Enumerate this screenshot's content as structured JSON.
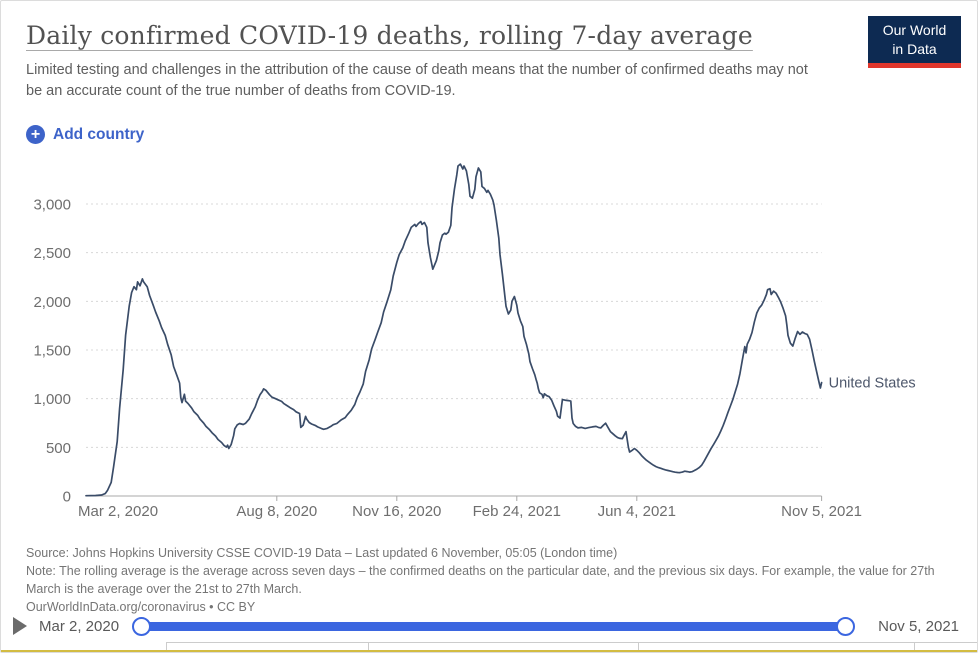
{
  "header": {
    "title": "Daily confirmed COVID-19 deaths, rolling 7-day average",
    "subtitle": "Limited testing and challenges in the attribution of the cause of death means that the number of confirmed deaths may not be an accurate count of the true number of deaths from COVID-19.",
    "logo": {
      "line1": "Our World",
      "line2": "in Data"
    }
  },
  "controls": {
    "add_country_label": "Add country",
    "plus_icon": "+"
  },
  "chart_data": {
    "type": "line",
    "title": "Daily confirmed COVID-19 deaths, rolling 7-day average",
    "xlabel": "",
    "ylabel": "",
    "x_tick_labels": [
      "Mar 2, 2020",
      "Aug 8, 2020",
      "Nov 16, 2020",
      "Feb 24, 2021",
      "Jun 4, 2021",
      "Nov 5, 2021"
    ],
    "x_tick_days": [
      0,
      159,
      259,
      359,
      459,
      613
    ],
    "y_ticks": [
      0,
      500,
      1000,
      1500,
      2000,
      2500,
      3000
    ],
    "y_tick_labels": [
      "0",
      "500",
      "1,000",
      "1,500",
      "2,000",
      "2,500",
      "3,000"
    ],
    "xlim_days": [
      0,
      613
    ],
    "ylim": [
      0,
      3500
    ],
    "grid": "dashed-horizontal",
    "legend_position": "end-of-line-label",
    "series": [
      {
        "name": "United States",
        "color": "#3a4c68",
        "points": [
          [
            0,
            3
          ],
          [
            8,
            5
          ],
          [
            13,
            10
          ],
          [
            16,
            25
          ],
          [
            18,
            60
          ],
          [
            21,
            140
          ],
          [
            23,
            300
          ],
          [
            26,
            560
          ],
          [
            28,
            900
          ],
          [
            31,
            1300
          ],
          [
            33,
            1650
          ],
          [
            36,
            1950
          ],
          [
            38,
            2090
          ],
          [
            40,
            2150
          ],
          [
            42,
            2120
          ],
          [
            43,
            2200
          ],
          [
            45,
            2160
          ],
          [
            47,
            2230
          ],
          [
            48,
            2200
          ],
          [
            51,
            2150
          ],
          [
            53,
            2060
          ],
          [
            56,
            1960
          ],
          [
            58,
            1890
          ],
          [
            61,
            1800
          ],
          [
            63,
            1730
          ],
          [
            66,
            1650
          ],
          [
            68,
            1560
          ],
          [
            71,
            1450
          ],
          [
            73,
            1330
          ],
          [
            76,
            1230
          ],
          [
            78,
            1160
          ],
          [
            79,
            1010
          ],
          [
            80,
            960
          ],
          [
            82,
            1045
          ],
          [
            83,
            975
          ],
          [
            85,
            950
          ],
          [
            88,
            905
          ],
          [
            90,
            865
          ],
          [
            93,
            830
          ],
          [
            95,
            790
          ],
          [
            98,
            750
          ],
          [
            100,
            715
          ],
          [
            103,
            680
          ],
          [
            105,
            650
          ],
          [
            108,
            615
          ],
          [
            110,
            580
          ],
          [
            113,
            550
          ],
          [
            115,
            520
          ],
          [
            117,
            502
          ],
          [
            118,
            522
          ],
          [
            119,
            488
          ],
          [
            121,
            530
          ],
          [
            123,
            620
          ],
          [
            124,
            690
          ],
          [
            126,
            730
          ],
          [
            128,
            745
          ],
          [
            131,
            735
          ],
          [
            133,
            748
          ],
          [
            136,
            790
          ],
          [
            138,
            845
          ],
          [
            141,
            915
          ],
          [
            143,
            985
          ],
          [
            145,
            1040
          ],
          [
            147,
            1075
          ],
          [
            148,
            1100
          ],
          [
            150,
            1085
          ],
          [
            153,
            1040
          ],
          [
            155,
            1015
          ],
          [
            158,
            1000
          ],
          [
            160,
            988
          ],
          [
            163,
            972
          ],
          [
            165,
            948
          ],
          [
            168,
            925
          ],
          [
            170,
            908
          ],
          [
            173,
            888
          ],
          [
            175,
            865
          ],
          [
            178,
            848
          ],
          [
            179,
            705
          ],
          [
            181,
            728
          ],
          [
            183,
            818
          ],
          [
            184,
            788
          ],
          [
            186,
            755
          ],
          [
            188,
            740
          ],
          [
            191,
            725
          ],
          [
            193,
            710
          ],
          [
            196,
            695
          ],
          [
            198,
            685
          ],
          [
            201,
            695
          ],
          [
            204,
            715
          ],
          [
            206,
            733
          ],
          [
            209,
            745
          ],
          [
            211,
            765
          ],
          [
            213,
            785
          ],
          [
            216,
            805
          ],
          [
            218,
            838
          ],
          [
            221,
            880
          ],
          [
            224,
            940
          ],
          [
            226,
            1010
          ],
          [
            228,
            1060
          ],
          [
            231,
            1150
          ],
          [
            233,
            1280
          ],
          [
            236,
            1400
          ],
          [
            238,
            1510
          ],
          [
            241,
            1610
          ],
          [
            243,
            1680
          ],
          [
            246,
            1780
          ],
          [
            248,
            1890
          ],
          [
            251,
            2000
          ],
          [
            254,
            2120
          ],
          [
            256,
            2260
          ],
          [
            259,
            2400
          ],
          [
            261,
            2480
          ],
          [
            264,
            2550
          ],
          [
            266,
            2620
          ],
          [
            269,
            2700
          ],
          [
            271,
            2760
          ],
          [
            274,
            2790
          ],
          [
            275,
            2770
          ],
          [
            277,
            2800
          ],
          [
            279,
            2820
          ],
          [
            280,
            2790
          ],
          [
            282,
            2810
          ],
          [
            284,
            2760
          ],
          [
            285,
            2600
          ],
          [
            287,
            2450
          ],
          [
            289,
            2330
          ],
          [
            290,
            2360
          ],
          [
            292,
            2420
          ],
          [
            294,
            2520
          ],
          [
            295,
            2600
          ],
          [
            297,
            2680
          ],
          [
            299,
            2700
          ],
          [
            300,
            2690
          ],
          [
            302,
            2710
          ],
          [
            304,
            2780
          ],
          [
            305,
            2960
          ],
          [
            307,
            3150
          ],
          [
            309,
            3300
          ],
          [
            310,
            3390
          ],
          [
            312,
            3410
          ],
          [
            314,
            3360
          ],
          [
            315,
            3390
          ],
          [
            317,
            3340
          ],
          [
            319,
            3200
          ],
          [
            320,
            3080
          ],
          [
            322,
            3060
          ],
          [
            324,
            3150
          ],
          [
            325,
            3280
          ],
          [
            327,
            3370
          ],
          [
            329,
            3330
          ],
          [
            330,
            3180
          ],
          [
            332,
            3160
          ],
          [
            334,
            3120
          ],
          [
            335,
            3140
          ],
          [
            337,
            3100
          ],
          [
            339,
            3040
          ],
          [
            340,
            2990
          ],
          [
            342,
            2830
          ],
          [
            344,
            2650
          ],
          [
            345,
            2480
          ],
          [
            347,
            2280
          ],
          [
            349,
            2060
          ],
          [
            350,
            1950
          ],
          [
            352,
            1870
          ],
          [
            354,
            1910
          ],
          [
            355,
            2000
          ],
          [
            357,
            2050
          ],
          [
            359,
            1960
          ],
          [
            360,
            1880
          ],
          [
            362,
            1800
          ],
          [
            364,
            1740
          ],
          [
            365,
            1640
          ],
          [
            367,
            1560
          ],
          [
            369,
            1460
          ],
          [
            370,
            1380
          ],
          [
            372,
            1310
          ],
          [
            374,
            1245
          ],
          [
            375,
            1200
          ],
          [
            376,
            1160
          ],
          [
            377,
            1100
          ],
          [
            378,
            1060
          ],
          [
            380,
            1045
          ],
          [
            381,
            1010
          ],
          [
            382,
            1050
          ],
          [
            384,
            1030
          ],
          [
            386,
            1020
          ],
          [
            388,
            985
          ],
          [
            390,
            925
          ],
          [
            392,
            870
          ],
          [
            393,
            820
          ],
          [
            395,
            800
          ],
          [
            397,
            990
          ],
          [
            399,
            985
          ],
          [
            402,
            980
          ],
          [
            404,
            975
          ],
          [
            405,
            800
          ],
          [
            406,
            745
          ],
          [
            408,
            715
          ],
          [
            410,
            700
          ],
          [
            413,
            705
          ],
          [
            416,
            695
          ],
          [
            419,
            703
          ],
          [
            422,
            710
          ],
          [
            425,
            715
          ],
          [
            427,
            705
          ],
          [
            429,
            700
          ],
          [
            431,
            725
          ],
          [
            433,
            748
          ],
          [
            435,
            705
          ],
          [
            437,
            662
          ],
          [
            439,
            640
          ],
          [
            441,
            618
          ],
          [
            443,
            600
          ],
          [
            445,
            592
          ],
          [
            447,
            590
          ],
          [
            448,
            615
          ],
          [
            450,
            662
          ],
          [
            451,
            580
          ],
          [
            452,
            500
          ],
          [
            453,
            452
          ],
          [
            455,
            468
          ],
          [
            457,
            488
          ],
          [
            459,
            470
          ],
          [
            461,
            445
          ],
          [
            463,
            415
          ],
          [
            465,
            390
          ],
          [
            467,
            368
          ],
          [
            469,
            350
          ],
          [
            471,
            332
          ],
          [
            473,
            315
          ],
          [
            475,
            302
          ],
          [
            477,
            292
          ],
          [
            479,
            285
          ],
          [
            481,
            275
          ],
          [
            483,
            268
          ],
          [
            485,
            262
          ],
          [
            487,
            256
          ],
          [
            489,
            250
          ],
          [
            491,
            245
          ],
          [
            493,
            241
          ],
          [
            495,
            240
          ],
          [
            497,
            246
          ],
          [
            499,
            255
          ],
          [
            501,
            251
          ],
          [
            503,
            246
          ],
          [
            505,
            250
          ],
          [
            507,
            262
          ],
          [
            509,
            275
          ],
          [
            511,
            292
          ],
          [
            513,
            315
          ],
          [
            515,
            355
          ],
          [
            517,
            400
          ],
          [
            519,
            445
          ],
          [
            521,
            490
          ],
          [
            523,
            530
          ],
          [
            525,
            572
          ],
          [
            527,
            615
          ],
          [
            529,
            668
          ],
          [
            531,
            725
          ],
          [
            533,
            790
          ],
          [
            535,
            860
          ],
          [
            537,
            925
          ],
          [
            539,
            990
          ],
          [
            541,
            1070
          ],
          [
            543,
            1150
          ],
          [
            545,
            1260
          ],
          [
            547,
            1400
          ],
          [
            549,
            1535
          ],
          [
            550,
            1470
          ],
          [
            551,
            1560
          ],
          [
            553,
            1610
          ],
          [
            555,
            1680
          ],
          [
            557,
            1790
          ],
          [
            559,
            1880
          ],
          [
            561,
            1930
          ],
          [
            563,
            1960
          ],
          [
            565,
            2010
          ],
          [
            567,
            2070
          ],
          [
            568,
            2120
          ],
          [
            570,
            2130
          ],
          [
            571,
            2070
          ],
          [
            573,
            2105
          ],
          [
            575,
            2085
          ],
          [
            577,
            2040
          ],
          [
            579,
            1990
          ],
          [
            581,
            1925
          ],
          [
            583,
            1850
          ],
          [
            584,
            1760
          ],
          [
            585,
            1650
          ],
          [
            587,
            1570
          ],
          [
            589,
            1540
          ],
          [
            591,
            1620
          ],
          [
            593,
            1690
          ],
          [
            595,
            1660
          ],
          [
            597,
            1685
          ],
          [
            599,
            1670
          ],
          [
            601,
            1660
          ],
          [
            603,
            1610
          ],
          [
            605,
            1500
          ],
          [
            607,
            1380
          ],
          [
            609,
            1270
          ],
          [
            611,
            1160
          ],
          [
            612,
            1110
          ],
          [
            613,
            1165
          ]
        ]
      }
    ]
  },
  "footer": {
    "source": "Source: Johns Hopkins University CSSE COVID-19 Data – Last updated 6 November, 05:05 (London time)",
    "note": "Note: The rolling average is the average across seven days – the confirmed deaths on the particular date, and the previous six days. For example, the value for 27th March is the average over the 21st to 27th March.",
    "license": "OurWorldInData.org/coronavirus • CC BY"
  },
  "timeline": {
    "start_label": "Mar 2, 2020",
    "end_label": "Nov 5, 2021",
    "play_icon": "play-triangle"
  },
  "colors": {
    "line": "#3a4c68",
    "accent_blue": "#3d63c9",
    "slider_blue": "#3b66e0",
    "logo_navy": "#0d2a52",
    "logo_red": "#e0362c",
    "grid": "#d8d8d8",
    "axis": "#a8a8a8",
    "tick_text": "#6e6e6e",
    "gold_bar": "#d3bc42"
  }
}
